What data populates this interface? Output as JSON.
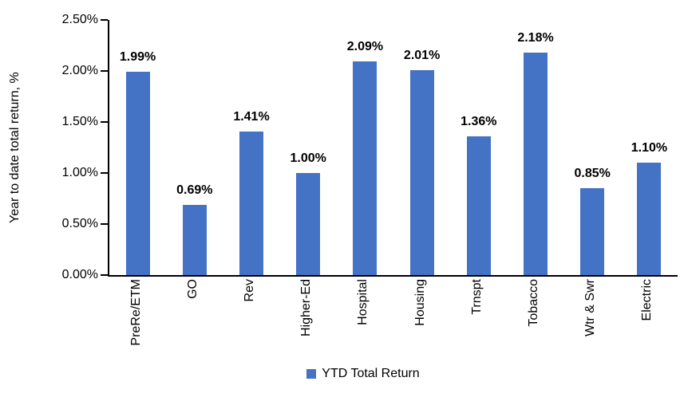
{
  "chart_data": {
    "type": "bar",
    "title": "",
    "xlabel": "",
    "ylabel": "Year to date total return, %",
    "categories": [
      "PreRe/ETM",
      "GO",
      "Rev",
      "Higher-Ed",
      "Hospital",
      "Housing",
      "Trnspt",
      "Tobacco",
      "Wtr & Swr",
      "Electric"
    ],
    "values": [
      1.99,
      0.69,
      1.41,
      1.0,
      2.09,
      2.01,
      1.36,
      2.18,
      0.85,
      1.1
    ],
    "value_labels": [
      "1.99%",
      "0.69%",
      "1.41%",
      "1.00%",
      "2.09%",
      "2.01%",
      "1.36%",
      "2.18%",
      "0.85%",
      "1.10%"
    ],
    "ylim": [
      0,
      2.5
    ],
    "ytick_labels": [
      "0.00%",
      "0.50%",
      "1.00%",
      "1.50%",
      "2.00%",
      "2.50%"
    ],
    "grid": false,
    "legend": {
      "position": "bottom",
      "entries": [
        {
          "label": "YTD Total Return",
          "color": "#4472C4"
        }
      ]
    }
  },
  "colors": {
    "bar": "#4472C4",
    "axis": "#000000",
    "text": "#000000",
    "background": "#FFFFFF"
  }
}
